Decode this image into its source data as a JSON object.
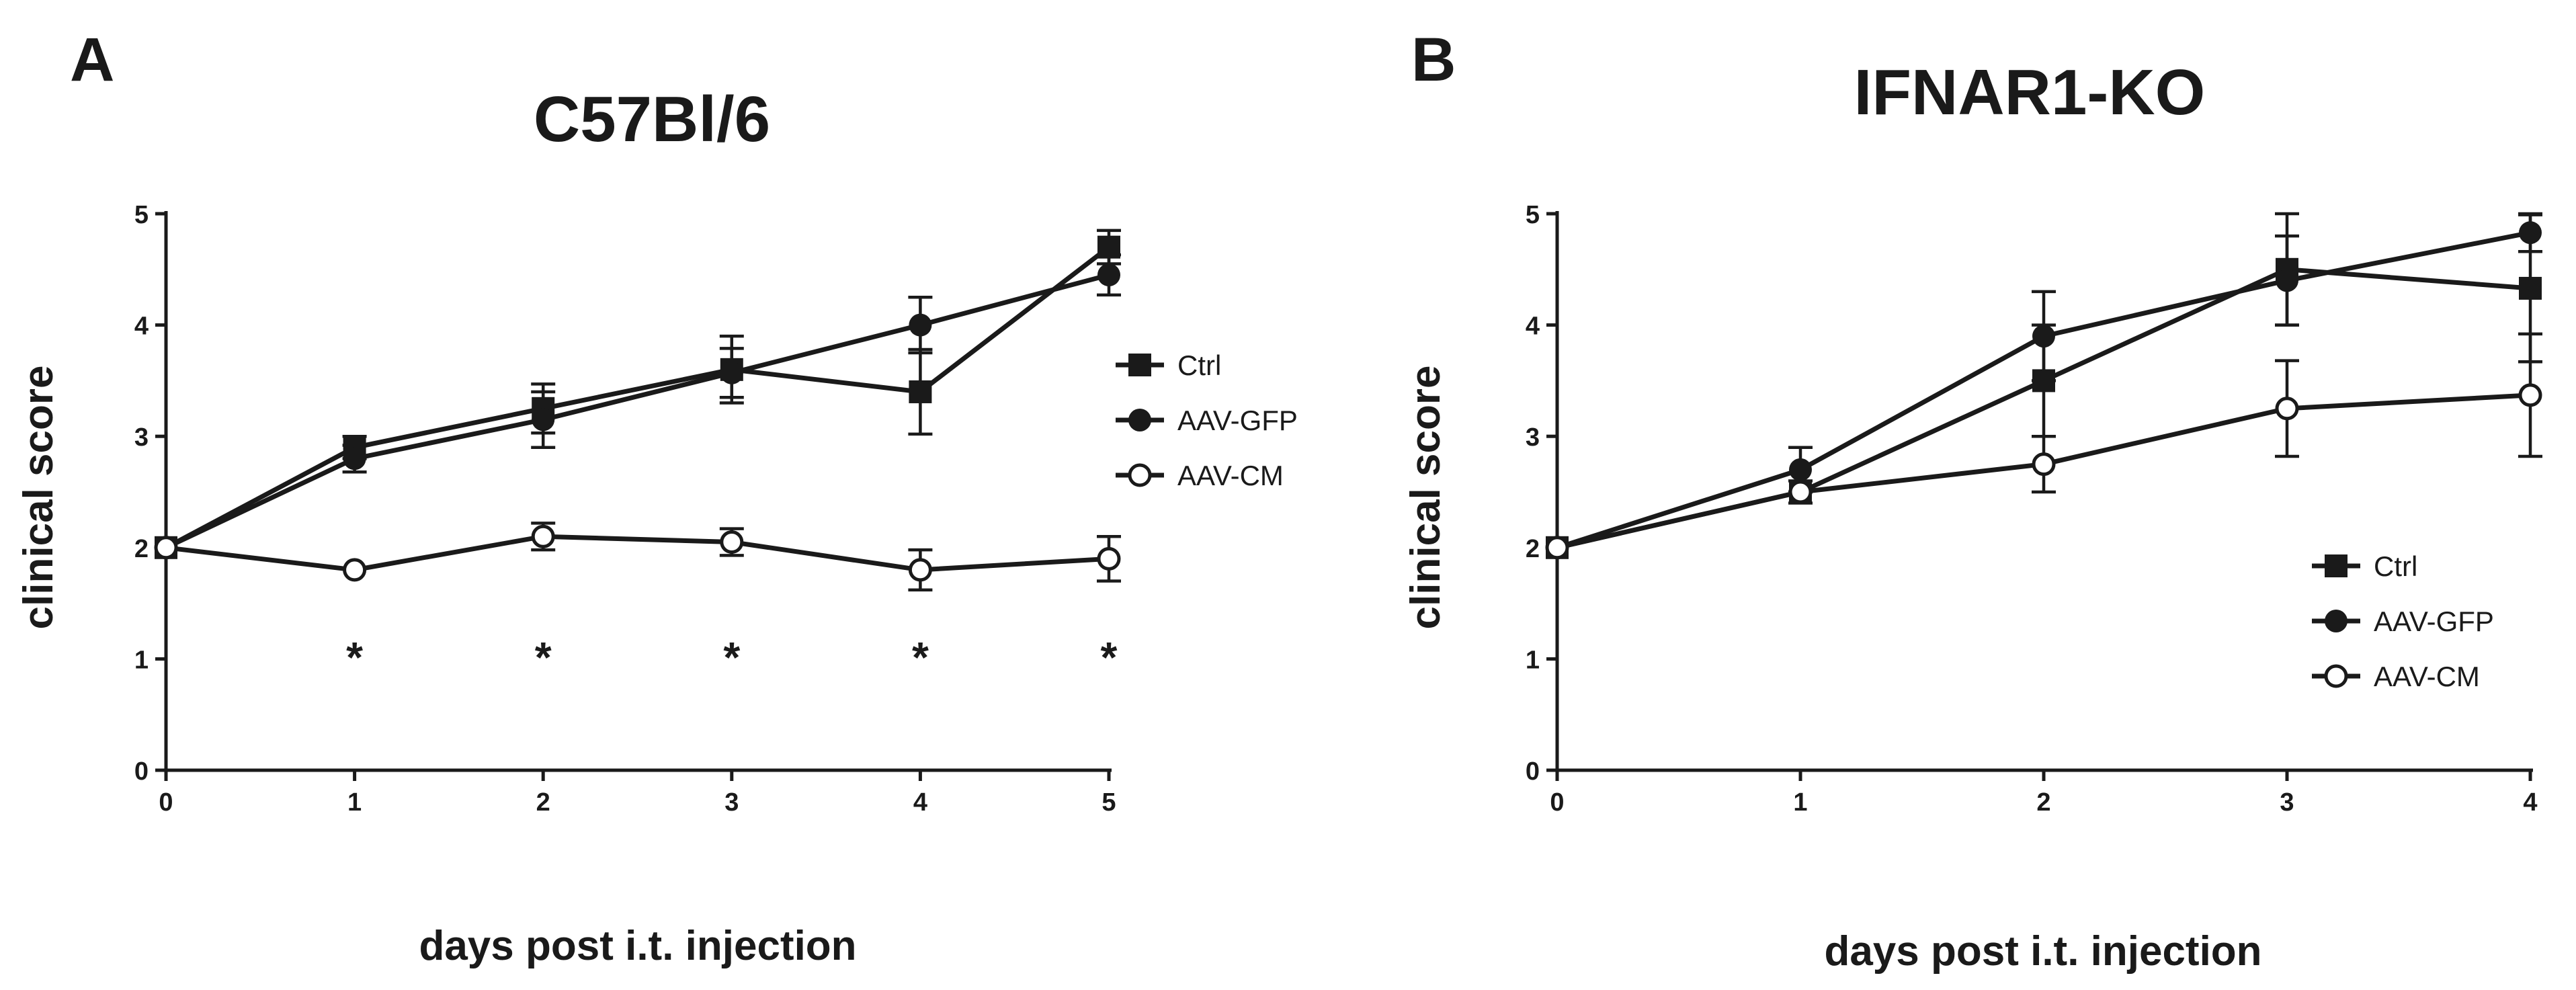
{
  "chart_data": [
    {
      "panel": "A",
      "type": "line",
      "title": "C57Bl/6",
      "xlabel": "days post i.t. injection",
      "ylabel": "clinical score",
      "xlim": [
        0,
        5
      ],
      "ylim": [
        0,
        5
      ],
      "xticks": [
        "0",
        "1",
        "2",
        "3",
        "4",
        "5"
      ],
      "yticks": [
        "0",
        "1",
        "2",
        "3",
        "4",
        "5"
      ],
      "legend_position": "right-middle",
      "x": [
        0,
        1,
        2,
        3,
        4,
        5
      ],
      "series": [
        {
          "name": "Ctrl",
          "marker": "square",
          "values": [
            2.0,
            2.9,
            3.25,
            3.6,
            3.4,
            4.7
          ],
          "errors": [
            0.0,
            0.1,
            0.22,
            0.3,
            0.38,
            0.15
          ]
        },
        {
          "name": "AAV-GFP",
          "marker": "circle",
          "values": [
            2.0,
            2.8,
            3.15,
            3.57,
            4.0,
            4.45
          ],
          "errors": [
            0.0,
            0.12,
            0.25,
            0.22,
            0.25,
            0.18
          ]
        },
        {
          "name": "AAV-CM",
          "marker": "open-circle",
          "values": [
            2.0,
            1.8,
            2.1,
            2.05,
            1.8,
            1.9
          ],
          "errors": [
            0.0,
            0.0,
            0.12,
            0.12,
            0.18,
            0.2
          ]
        }
      ],
      "significance": [
        {
          "x": 1,
          "label": "*"
        },
        {
          "x": 2,
          "label": "*"
        },
        {
          "x": 3,
          "label": "*"
        },
        {
          "x": 4,
          "label": "*"
        },
        {
          "x": 5,
          "label": "*"
        }
      ]
    },
    {
      "panel": "B",
      "type": "line",
      "title": "IFNAR1-KO",
      "xlabel": "days post i.t. injection",
      "ylabel": "clinical score",
      "xlim": [
        0,
        4
      ],
      "ylim": [
        0,
        5
      ],
      "xticks": [
        "0",
        "1",
        "2",
        "3",
        "4"
      ],
      "yticks": [
        "0",
        "1",
        "2",
        "3",
        "4",
        "5"
      ],
      "legend_position": "bottom-right",
      "x": [
        0,
        1,
        2,
        3,
        4
      ],
      "series": [
        {
          "name": "Ctrl",
          "marker": "square",
          "values": [
            2.0,
            2.5,
            3.5,
            4.5,
            4.33
          ],
          "errors": [
            0.0,
            0.1,
            0.5,
            0.5,
            0.66
          ]
        },
        {
          "name": "AAV-GFP",
          "marker": "circle",
          "values": [
            2.0,
            2.7,
            3.9,
            4.4,
            4.83
          ],
          "errors": [
            0.0,
            0.2,
            0.4,
            0.4,
            0.17
          ]
        },
        {
          "name": "AAV-CM",
          "marker": "open-circle",
          "values": [
            2.0,
            2.5,
            2.75,
            3.25,
            3.37
          ],
          "errors": [
            0.0,
            0.0,
            0.25,
            0.43,
            0.55
          ]
        }
      ],
      "significance": []
    }
  ]
}
